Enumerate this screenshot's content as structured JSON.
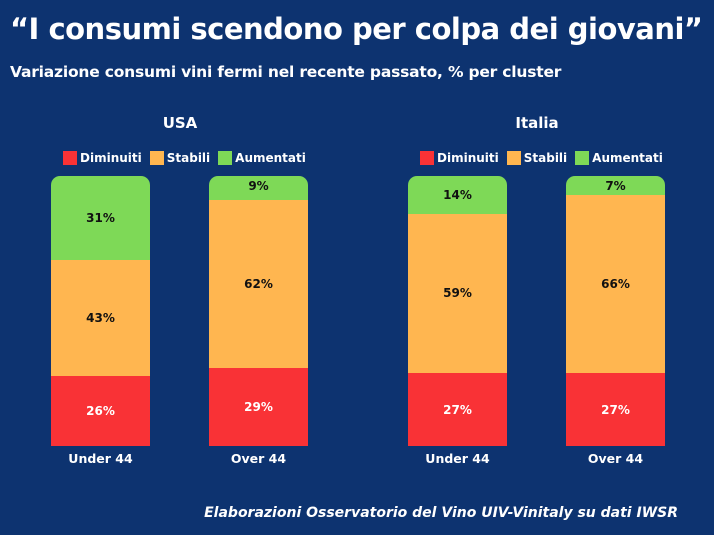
{
  "header": {
    "title": "“I consumi scendono per colpa dei giovani”",
    "subtitle": "Variazione consumi vini fermi nel recente passato, % per cluster"
  },
  "legend": [
    {
      "label": "Diminuiti",
      "color": "#f93236"
    },
    {
      "label": "Stabili",
      "color": "#ffb650"
    },
    {
      "label": "Aumentati",
      "color": "#7ed957"
    }
  ],
  "chart_data": [
    {
      "type": "bar",
      "stacked": true,
      "title": "USA",
      "categories": [
        "Under 44",
        "Over 44"
      ],
      "series": [
        {
          "name": "Diminuiti",
          "values": [
            26,
            29
          ],
          "labels": [
            "26%",
            "29%"
          ]
        },
        {
          "name": "Stabili",
          "values": [
            43,
            62
          ],
          "labels": [
            "43%",
            "62%"
          ]
        },
        {
          "name": "Aumentati",
          "values": [
            31,
            9
          ],
          "labels": [
            "31%",
            "9%"
          ]
        }
      ],
      "ylim": [
        0,
        100
      ],
      "legend_position": "top",
      "grid": false
    },
    {
      "type": "bar",
      "stacked": true,
      "title": "Italia",
      "categories": [
        "Under 44",
        "Over 44"
      ],
      "series": [
        {
          "name": "Diminuiti",
          "values": [
            27,
            27
          ],
          "labels": [
            "27%",
            "27%"
          ]
        },
        {
          "name": "Stabili",
          "values": [
            59,
            66
          ],
          "labels": [
            "59%",
            "66%"
          ]
        },
        {
          "name": "Aumentati",
          "values": [
            14,
            7
          ],
          "labels": [
            "14%",
            "7%"
          ]
        }
      ],
      "ylim": [
        0,
        100
      ],
      "legend_position": "top",
      "grid": false
    }
  ],
  "footer": {
    "source": "Elaborazioni Osservatorio del Vino UIV-Vinitaly su dati IWSR"
  }
}
